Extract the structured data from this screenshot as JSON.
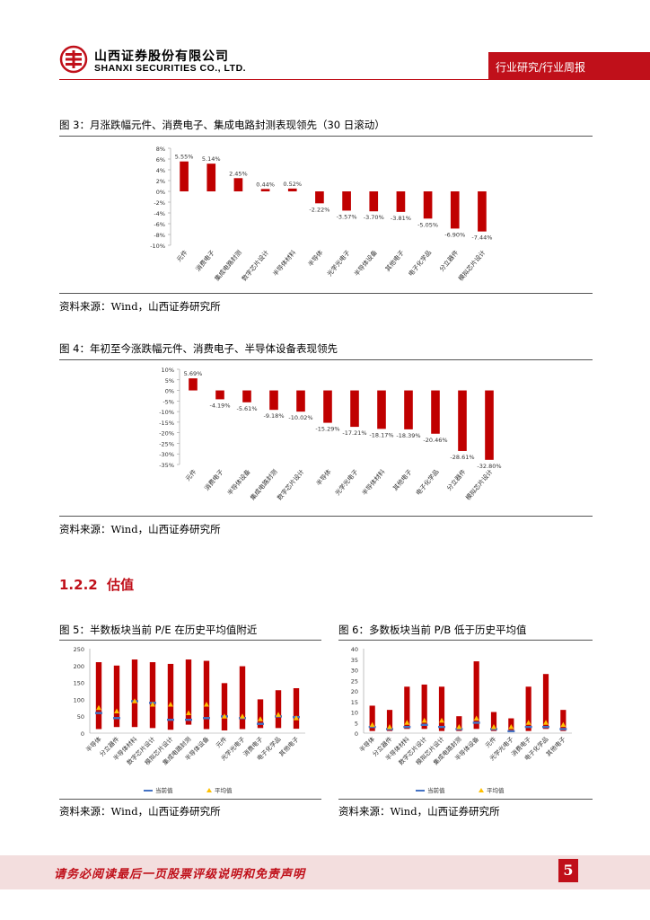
{
  "header": {
    "company_cn": "山西证券股份有限公司",
    "company_en": "SHANXI SECURITIES CO., LTD.",
    "report_type": "行业研究/行业周报"
  },
  "figures": [
    {
      "caption": "图 3：月涨跌幅元件、消费电子、集成电路封测表现领先（30 日滚动）",
      "source": "资料来源：Wind，山西证券研究所"
    },
    {
      "caption": "图 4：年初至今涨跌幅元件、消费电子、半导体设备表现领先",
      "source": "资料来源：Wind，山西证券研究所"
    },
    {
      "caption": "图 5：半数板块当前 P/E 在历史平均值附近",
      "source": "资料来源：Wind，山西证券研究所"
    },
    {
      "caption": "图 6：多数板块当前 P/B 低于历史平均值",
      "source": "资料来源：Wind，山西证券研究所"
    }
  ],
  "section": {
    "number": "1.2.2",
    "title": "估值"
  },
  "footer": {
    "disclaimer": "请务必阅读最后一页股票评级说明和免责声明",
    "page": "5"
  },
  "colors": {
    "bar": "#c00000",
    "current": "#4472c4",
    "average": "#ffc000",
    "brand": "#c0101a"
  },
  "chart_data": [
    {
      "type": "bar",
      "categories": [
        "元件",
        "消费电子",
        "集成电路封测",
        "数字芯片设计",
        "半导体材料",
        "半导体",
        "光学光电子",
        "半导体设备",
        "其他电子",
        "电子化学品",
        "分立器件",
        "模拟芯片设计"
      ],
      "values": [
        5.55,
        5.14,
        2.45,
        0.44,
        0.52,
        -2.22,
        -3.57,
        -3.7,
        -3.81,
        -5.05,
        -6.9,
        -7.44
      ],
      "labels": [
        "5.55%",
        "5.14%",
        "2.45%",
        "0.44%",
        "0.52%",
        "-2.22%",
        "-3.57%",
        "-3.70%",
        "-3.81%",
        "-5.05%",
        "-6.90%",
        "-7.44%"
      ],
      "yticks": [
        "8%",
        "6%",
        "4%",
        "2%",
        "0%",
        "-2%",
        "-4%",
        "-6%",
        "-8%",
        "-10%"
      ],
      "ylim": [
        -10,
        8
      ]
    },
    {
      "type": "bar",
      "categories": [
        "元件",
        "消费电子",
        "半导体设备",
        "集成电路封测",
        "数字芯片设计",
        "半导体",
        "光学光电子",
        "半导体材料",
        "其他电子",
        "电子化学品",
        "分立器件",
        "模拟芯片设计"
      ],
      "values": [
        5.69,
        -4.19,
        -5.61,
        -9.18,
        -10.02,
        -15.29,
        -17.21,
        -18.17,
        -18.39,
        -20.46,
        -28.61,
        -32.8
      ],
      "labels": [
        "5.69%",
        "-4.19%",
        "-5.61%",
        "-9.18%",
        "-10.02%",
        "-15.29%",
        "-17.21%",
        "-18.17%",
        "-18.39%",
        "-20.46%",
        "-28.61%",
        "-32.80%"
      ],
      "yticks": [
        "10%",
        "5%",
        "0%",
        "-5%",
        "-10%",
        "-15%",
        "-20%",
        "-25%",
        "-30%",
        "-35%"
      ],
      "ylim": [
        -35,
        10
      ]
    },
    {
      "type": "bar",
      "categories": [
        "半导体",
        "分立器件",
        "半导体材料",
        "数字芯片设计",
        "模拟芯片设计",
        "集成电路封测",
        "半导体设备",
        "元件",
        "光学光电子",
        "消费电子",
        "电子化学品",
        "其他电子"
      ],
      "high": [
        210,
        200,
        218,
        210,
        205,
        218,
        214,
        148,
        198,
        100,
        127,
        133
      ],
      "low": [
        12,
        18,
        18,
        15,
        10,
        25,
        12,
        8,
        12,
        15,
        15,
        13
      ],
      "current": [
        60,
        45,
        95,
        90,
        40,
        40,
        45,
        50,
        45,
        28,
        50,
        48
      ],
      "average": [
        75,
        65,
        95,
        85,
        85,
        60,
        85,
        50,
        50,
        42,
        55,
        45
      ],
      "legend": [
        "当前值",
        "平均值"
      ],
      "yticks": [
        "250",
        "200",
        "150",
        "100",
        "50",
        "0"
      ],
      "ylim": [
        0,
        250
      ]
    },
    {
      "type": "bar",
      "categories": [
        "半导体",
        "分立器件",
        "半导体材料",
        "数字芯片设计",
        "模拟芯片设计",
        "集成电路封测",
        "半导体设备",
        "元件",
        "光学光电子",
        "消费电子",
        "电子化学品",
        "其他电子"
      ],
      "high": [
        13,
        11,
        22,
        23,
        22,
        8,
        34,
        10,
        7,
        22,
        28,
        11
      ],
      "low": [
        1,
        1,
        2,
        2,
        1,
        1,
        2,
        1,
        1,
        1,
        2,
        1
      ],
      "current": [
        3,
        2,
        3,
        4,
        3,
        2,
        5,
        2,
        1,
        3,
        3,
        2
      ],
      "average": [
        4,
        3,
        5,
        6,
        6,
        3,
        7,
        3,
        3,
        5,
        5,
        4
      ],
      "legend": [
        "当前值",
        "平均值"
      ],
      "yticks": [
        "40",
        "35",
        "30",
        "25",
        "20",
        "15",
        "10",
        "5",
        "0"
      ],
      "ylim": [
        0,
        40
      ]
    }
  ]
}
